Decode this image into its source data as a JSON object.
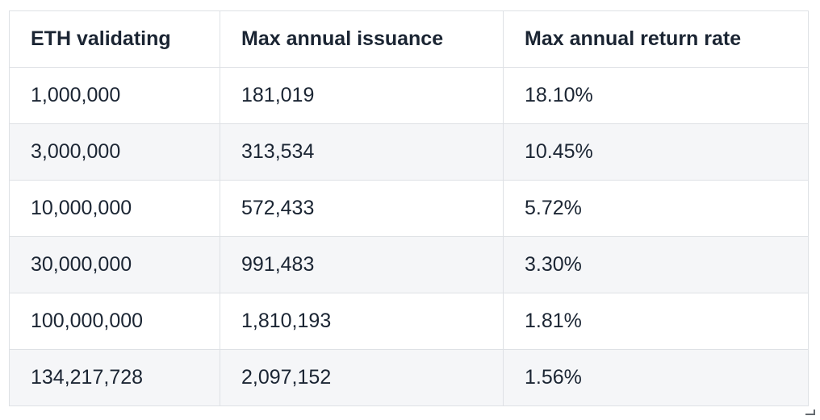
{
  "table": {
    "columns": [
      "ETH validating",
      "Max annual issuance",
      "Max annual return rate"
    ],
    "rows": [
      [
        "1,000,000",
        "181,019",
        "18.10%"
      ],
      [
        "3,000,000",
        "313,534",
        "10.45%"
      ],
      [
        "10,000,000",
        "572,433",
        "5.72%"
      ],
      [
        "30,000,000",
        "991,483",
        "3.30%"
      ],
      [
        "100,000,000",
        "1,810,193",
        "1.81%"
      ],
      [
        "134,217,728",
        "2,097,152",
        "1.56%"
      ]
    ]
  },
  "colors": {
    "text": "#1b2533",
    "border": "#dee1e5",
    "row_alt_bg": "#f5f6f8",
    "page_bg": "#ffffff"
  }
}
